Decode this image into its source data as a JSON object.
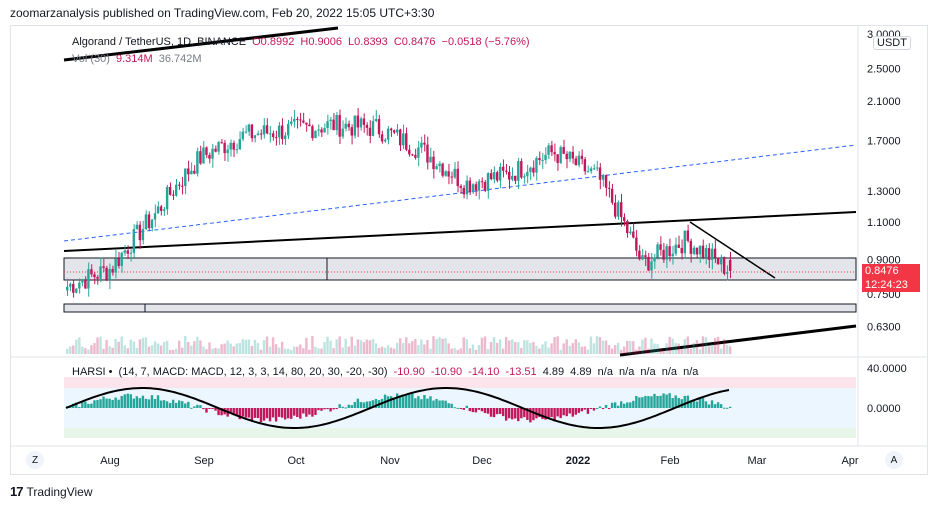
{
  "header": {
    "published": "zoomarzanalysis published on TradingView.com, Feb 20, 2022 15:05 UTC+3:30"
  },
  "footer": {
    "brand": "TradingView",
    "logo": "17"
  },
  "legend": {
    "symbol": "Algorand / TetherUS, 1D, BINANCE",
    "o": "O0.8992",
    "h": "H0.9006",
    "l": "L0.8393",
    "c": "C0.8476",
    "chg": "−0.0518 (−5.76%)",
    "vol_label": "Vol (30)",
    "vol1": "9.314M",
    "vol2": "36.742M"
  },
  "harsi_legend": {
    "name": "HARSI",
    "params": "(14, 7, MACD: MACD, 12, 3, 3, 14, 80, 20, 30, -20, -30)",
    "v1": "-10.90",
    "v2": "-10.90",
    "v3": "-14.10",
    "v4": "-13.51",
    "v5": "4.89",
    "v6": "4.89",
    "na": [
      "n/a",
      "n/a",
      "n/a",
      "n/a",
      "n/a"
    ]
  },
  "price_axis": {
    "currency": "USDT",
    "current_price": "0.8476",
    "countdown": "12:24:23",
    "ticks": [
      "3.0000",
      "2.5000",
      "2.1000",
      "1.7000",
      "1.3000",
      "1.1000",
      "0.9000",
      "0.7500",
      "0.6300"
    ]
  },
  "harsi_axis": {
    "ticks": [
      "40.0000",
      "0.0000"
    ]
  },
  "time_axis": {
    "ticks": [
      "Aug",
      "Sep",
      "Oct",
      "Nov",
      "Dec",
      "2022",
      "Feb",
      "Mar",
      "Apr"
    ]
  },
  "buttons": {
    "zoom": "Z",
    "auto": "A"
  },
  "colors": {
    "up": "#26a69a",
    "down": "#c2185b",
    "current": "#f23645",
    "harsi_line": "#000000"
  },
  "chart_data": {
    "type": "candlestick",
    "title": "Algorand / TetherUS, 1D, BINANCE",
    "scale": "log",
    "ylim": [
      0.55,
      3.1
    ],
    "x": [
      "2021-07-15",
      "2021-08-01",
      "2021-08-15",
      "2021-09-01",
      "2021-09-15",
      "2021-10-01",
      "2021-10-15",
      "2021-11-01",
      "2021-11-15",
      "2021-12-01",
      "2021-12-15",
      "2022-01-01",
      "2022-01-15",
      "2022-02-01",
      "2022-02-10",
      "2022-02-20"
    ],
    "close": [
      0.78,
      0.86,
      1.15,
      1.55,
      1.75,
      1.8,
      1.85,
      1.82,
      1.62,
      1.35,
      1.42,
      1.6,
      1.4,
      0.88,
      1.0,
      0.8476
    ],
    "last": {
      "open": 0.8992,
      "high": 0.9006,
      "low": 0.8393,
      "close": 0.8476
    }
  }
}
